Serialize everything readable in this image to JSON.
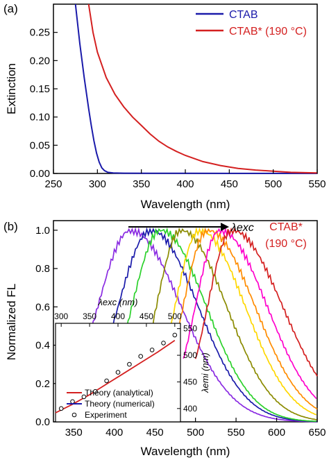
{
  "chart_data": [
    {
      "type": "line",
      "panel_label": "(a)",
      "xlabel": "Wavelength (nm)",
      "ylabel": "Extinction",
      "xlim": [
        250,
        550
      ],
      "ylim": [
        0,
        0.3
      ],
      "xticks": [
        "250",
        "300",
        "350",
        "400",
        "450",
        "500",
        "550"
      ],
      "yticks": [
        "0.00",
        "0.05",
        "0.10",
        "0.15",
        "0.20",
        "0.25"
      ],
      "grid": false,
      "legend_position": "top-right",
      "series": [
        {
          "name": "CTAB",
          "color": "#1a1aaa",
          "x": [
            275,
            280,
            285,
            290,
            293,
            296,
            299,
            302,
            305,
            308,
            312,
            318,
            330,
            360,
            400,
            450,
            500,
            550
          ],
          "y": [
            0.3,
            0.23,
            0.17,
            0.115,
            0.085,
            0.058,
            0.036,
            0.02,
            0.01,
            0.005,
            0.002,
            0.001,
            0.0005,
            0.0003,
            0.0002,
            0.0001,
            0.0001,
            0.0001
          ]
        },
        {
          "name": "CTAB* (190 °C)",
          "color": "#d42020",
          "x": [
            290,
            295,
            300,
            310,
            320,
            330,
            340,
            350,
            360,
            370,
            380,
            390,
            400,
            420,
            440,
            460,
            480,
            500,
            520,
            550
          ],
          "y": [
            0.3,
            0.25,
            0.215,
            0.17,
            0.14,
            0.118,
            0.1,
            0.085,
            0.07,
            0.057,
            0.047,
            0.039,
            0.032,
            0.021,
            0.014,
            0.009,
            0.006,
            0.004,
            0.002,
            0.001
          ]
        }
      ]
    },
    {
      "type": "line",
      "panel_label": "(b)",
      "xlabel": "Wavelength (nm)",
      "ylabel": "Normalized FL",
      "xlim": [
        325,
        650
      ],
      "ylim": [
        0,
        1.05
      ],
      "xticks": [
        "350",
        "400",
        "450",
        "500",
        "550",
        "600",
        "650"
      ],
      "yticks": [
        "0.0",
        "0.2",
        "0.4",
        "0.6",
        "0.8",
        "1.0"
      ],
      "grid": false,
      "annotation_arrow": "λexc",
      "annotation_sample": "CTAB*",
      "annotation_temp": "(190 °C)",
      "spectra": [
        {
          "color": "#8a2be2",
          "start": 348,
          "peak": 420,
          "sigma_left": 40,
          "sigma_right": 62
        },
        {
          "color": "#1a1aaa",
          "start": 370,
          "peak": 445,
          "sigma_left": 40,
          "sigma_right": 58
        },
        {
          "color": "#2bd12b",
          "start": 395,
          "peak": 457,
          "sigma_left": 35,
          "sigma_right": 56
        },
        {
          "color": "#8b8b00",
          "start": 430,
          "peak": 482,
          "sigma_left": 30,
          "sigma_right": 56
        },
        {
          "color": "#ffd700",
          "start": 455,
          "peak": 505,
          "sigma_left": 30,
          "sigma_right": 56
        },
        {
          "color": "#ff8c00",
          "start": 470,
          "peak": 515,
          "sigma_left": 30,
          "sigma_right": 58
        },
        {
          "color": "#ff00cc",
          "start": 485,
          "peak": 530,
          "sigma_left": 30,
          "sigma_right": 58
        },
        {
          "color": "#d42020",
          "start": 500,
          "peak": 545,
          "sigma_left": 30,
          "sigma_right": 62
        }
      ],
      "inset": {
        "type": "scatter",
        "xlabel": "λexc (nm)",
        "ylabel": "λemi (nm)",
        "xlim": [
          290,
          510
        ],
        "ylim": [
          375,
          560
        ],
        "xticks": [
          "300",
          "350",
          "400",
          "450",
          "500"
        ],
        "yticks": [
          "400",
          "450",
          "500",
          "550"
        ],
        "legend_position": "bottom-left",
        "series": [
          {
            "name": "Theory (analytical)",
            "color": "#d42020",
            "kind": "line",
            "x": [
              290,
              320,
              350,
              380,
              410,
              440,
              470,
              500
            ],
            "y": [
              392,
              408,
              426,
              446,
              466,
              486,
              506,
              528
            ]
          },
          {
            "name": "Theory (numerical)",
            "color": "#1a1aaa",
            "kind": "line",
            "x": [],
            "y": []
          },
          {
            "name": "Experiment",
            "color": "#000000",
            "kind": "points",
            "x": [
              300,
              320,
              340,
              360,
              380,
              400,
              420,
              440,
              460,
              480,
              500
            ],
            "y": [
              400,
              413,
              422,
              432,
              452,
              468,
              483,
              498,
              510,
              523,
              538
            ]
          }
        ]
      }
    }
  ]
}
